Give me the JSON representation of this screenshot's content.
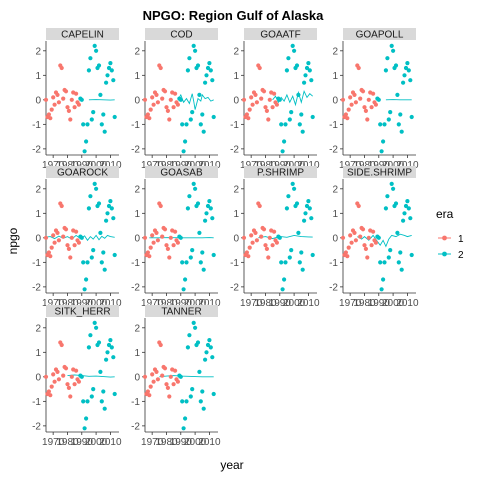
{
  "chart_data": {
    "type": "scatter",
    "title": "NPGO: Region Gulf of Alaska",
    "xlabel": "year",
    "ylabel": "npgo",
    "xlim": [
      1965,
      2016
    ],
    "ylim": [
      -2.25,
      2.4
    ],
    "x_ticks": [
      1970,
      1980,
      1990,
      2000,
      2010
    ],
    "x_tick_labels": [
      "1970",
      "1980",
      "1990",
      "2000",
      "2010"
    ],
    "y_ticks": [
      -2,
      -1,
      0,
      1,
      2
    ],
    "y_tick_labels": [
      "-2",
      "-1",
      "0",
      "1",
      "2"
    ],
    "grid": false,
    "legend": {
      "title": "era",
      "placement": "right",
      "entries": [
        {
          "label": "1",
          "color": "#F8766D"
        },
        {
          "label": "2",
          "color": "#00BFC4"
        }
      ]
    },
    "panels": [
      {
        "name": "CAPELIN",
        "line": [
          [
            1995,
            0
          ],
          [
            2000,
            0.01
          ],
          [
            2005,
            0
          ],
          [
            2010,
            -0.01
          ],
          [
            2013,
            0
          ]
        ]
      },
      {
        "name": "COD",
        "line": [
          [
            1988,
            0
          ],
          [
            1990,
            0.2
          ],
          [
            1992,
            -0.1
          ],
          [
            1994,
            0.05
          ],
          [
            1996,
            -0.15
          ],
          [
            1998,
            0.25
          ],
          [
            1999,
            -0.05
          ],
          [
            2000,
            -0.4
          ],
          [
            2002,
            0.05
          ],
          [
            2004,
            -0.05
          ],
          [
            2005,
            0.2
          ],
          [
            2007,
            0.05
          ],
          [
            2009,
            0.1
          ],
          [
            2011,
            -0.05
          ],
          [
            2013,
            0
          ]
        ]
      },
      {
        "name": "GOAATF",
        "line": [
          [
            1985,
            0
          ],
          [
            1987,
            0.15
          ],
          [
            1989,
            -0.1
          ],
          [
            1991,
            0.1
          ],
          [
            1993,
            -0.05
          ],
          [
            1995,
            0.2
          ],
          [
            1997,
            -0.1
          ],
          [
            1999,
            0.15
          ],
          [
            2001,
            -0.2
          ],
          [
            2003,
            0.3
          ],
          [
            2005,
            -0.1
          ],
          [
            2007,
            0.35
          ],
          [
            2009,
            0.1
          ],
          [
            2011,
            0.25
          ],
          [
            2013,
            0.15
          ]
        ]
      },
      {
        "name": "GOAPOLL",
        "line": [
          [
            1995,
            0
          ],
          [
            2000,
            0.01
          ],
          [
            2005,
            0
          ],
          [
            2010,
            0
          ],
          [
            2013,
            0
          ]
        ]
      },
      {
        "name": "GOAROCK",
        "line": [
          [
            1965,
            0.03
          ],
          [
            1968,
            0.05
          ],
          [
            1971,
            -0.03
          ],
          [
            1974,
            0.07
          ],
          [
            1977,
            -0.02
          ],
          [
            1980,
            0.05
          ],
          [
            1983,
            -0.05
          ],
          [
            1986,
            0.1
          ],
          [
            1989,
            -0.03
          ],
          [
            1992,
            0.08
          ],
          [
            1994,
            -0.1
          ],
          [
            1996,
            0.05
          ],
          [
            1998,
            -0.05
          ],
          [
            2000,
            0.1
          ],
          [
            2002,
            -0.08
          ],
          [
            2004,
            0.06
          ],
          [
            2006,
            -0.02
          ],
          [
            2008,
            0.1
          ],
          [
            2010,
            0.05
          ],
          [
            2013,
            0.02
          ]
        ]
      },
      {
        "name": "GOASAB",
        "line": [
          [
            1968,
            0
          ],
          [
            1975,
            0
          ],
          [
            1982,
            0.01
          ],
          [
            1990,
            0
          ],
          [
            1998,
            0
          ],
          [
            2005,
            0
          ],
          [
            2010,
            0.01
          ],
          [
            2013,
            0
          ]
        ]
      },
      {
        "name": "P.SHRIMP",
        "line": [
          [
            1975,
            0
          ],
          [
            1980,
            0.05
          ],
          [
            1985,
            -0.03
          ],
          [
            1990,
            0.06
          ],
          [
            1995,
            0.02
          ],
          [
            2000,
            0.1
          ],
          [
            2005,
            0.05
          ],
          [
            2010,
            0.04
          ],
          [
            2013,
            0.03
          ]
        ]
      },
      {
        "name": "SIDE.SHRIMP",
        "line": [
          [
            1975,
            0.05
          ],
          [
            1978,
            -0.05
          ],
          [
            1980,
            0.05
          ],
          [
            1983,
            -0.1
          ],
          [
            1986,
            0.1
          ],
          [
            1989,
            -0.15
          ],
          [
            1991,
            -0.3
          ],
          [
            1993,
            -0.1
          ],
          [
            1995,
            -0.35
          ],
          [
            1997,
            -0.05
          ],
          [
            1999,
            0.1
          ],
          [
            2002,
            0.05
          ],
          [
            2005,
            0.15
          ],
          [
            2008,
            0.1
          ],
          [
            2010,
            0.05
          ],
          [
            2013,
            0.1
          ]
        ]
      },
      {
        "name": "SITK_HERR",
        "line": [
          [
            1980,
            0.05
          ],
          [
            1985,
            0.08
          ],
          [
            1990,
            0.05
          ],
          [
            1995,
            0.02
          ],
          [
            2000,
            0.03
          ],
          [
            2005,
            0.01
          ],
          [
            2010,
            -0.01
          ],
          [
            2013,
            0
          ]
        ]
      },
      {
        "name": "TANNER",
        "line": [
          [
            1975,
            0
          ],
          [
            1980,
            0.03
          ],
          [
            1985,
            0.05
          ],
          [
            1990,
            0.03
          ],
          [
            1995,
            0.02
          ],
          [
            2000,
            0.01
          ],
          [
            2005,
            0
          ],
          [
            2010,
            0
          ],
          [
            2013,
            0
          ]
        ]
      }
    ],
    "series": [
      {
        "name": "1",
        "color": "#F8766D",
        "x": [
          1965,
          1966,
          1967,
          1968,
          1969,
          1970,
          1971,
          1972,
          1973,
          1974,
          1975,
          1976,
          1977,
          1978,
          1979,
          1980,
          1981,
          1982,
          1983,
          1984,
          1985,
          1986,
          1987,
          1988
        ],
        "y": [
          0.0,
          -0.7,
          -0.6,
          -0.75,
          -0.4,
          0.1,
          -0.2,
          0.3,
          0.2,
          -0.1,
          1.4,
          1.3,
          0.05,
          0.4,
          0.35,
          -0.3,
          -0.45,
          -0.8,
          0.0,
          0.3,
          -0.3,
          0.25,
          -0.1,
          -0.2
        ]
      },
      {
        "name": "2",
        "color": "#00BFC4",
        "x": [
          1989,
          1990,
          1991,
          1992,
          1993,
          1994,
          1995,
          1996,
          1997,
          1998,
          1999,
          2000,
          2001,
          2002,
          2003,
          2004,
          2005,
          2006,
          2007,
          2008,
          2009,
          2010,
          2011,
          2012,
          2013
        ],
        "y": [
          0.05,
          0.0,
          -1.0,
          -2.1,
          -1.7,
          -1.0,
          1.2,
          1.7,
          -0.8,
          -0.5,
          2.2,
          2.0,
          1.3,
          1.4,
          0.2,
          -1.0,
          -0.6,
          -1.3,
          0.7,
          1.0,
          1.3,
          1.5,
          1.2,
          0.8,
          -0.7
        ]
      }
    ]
  }
}
